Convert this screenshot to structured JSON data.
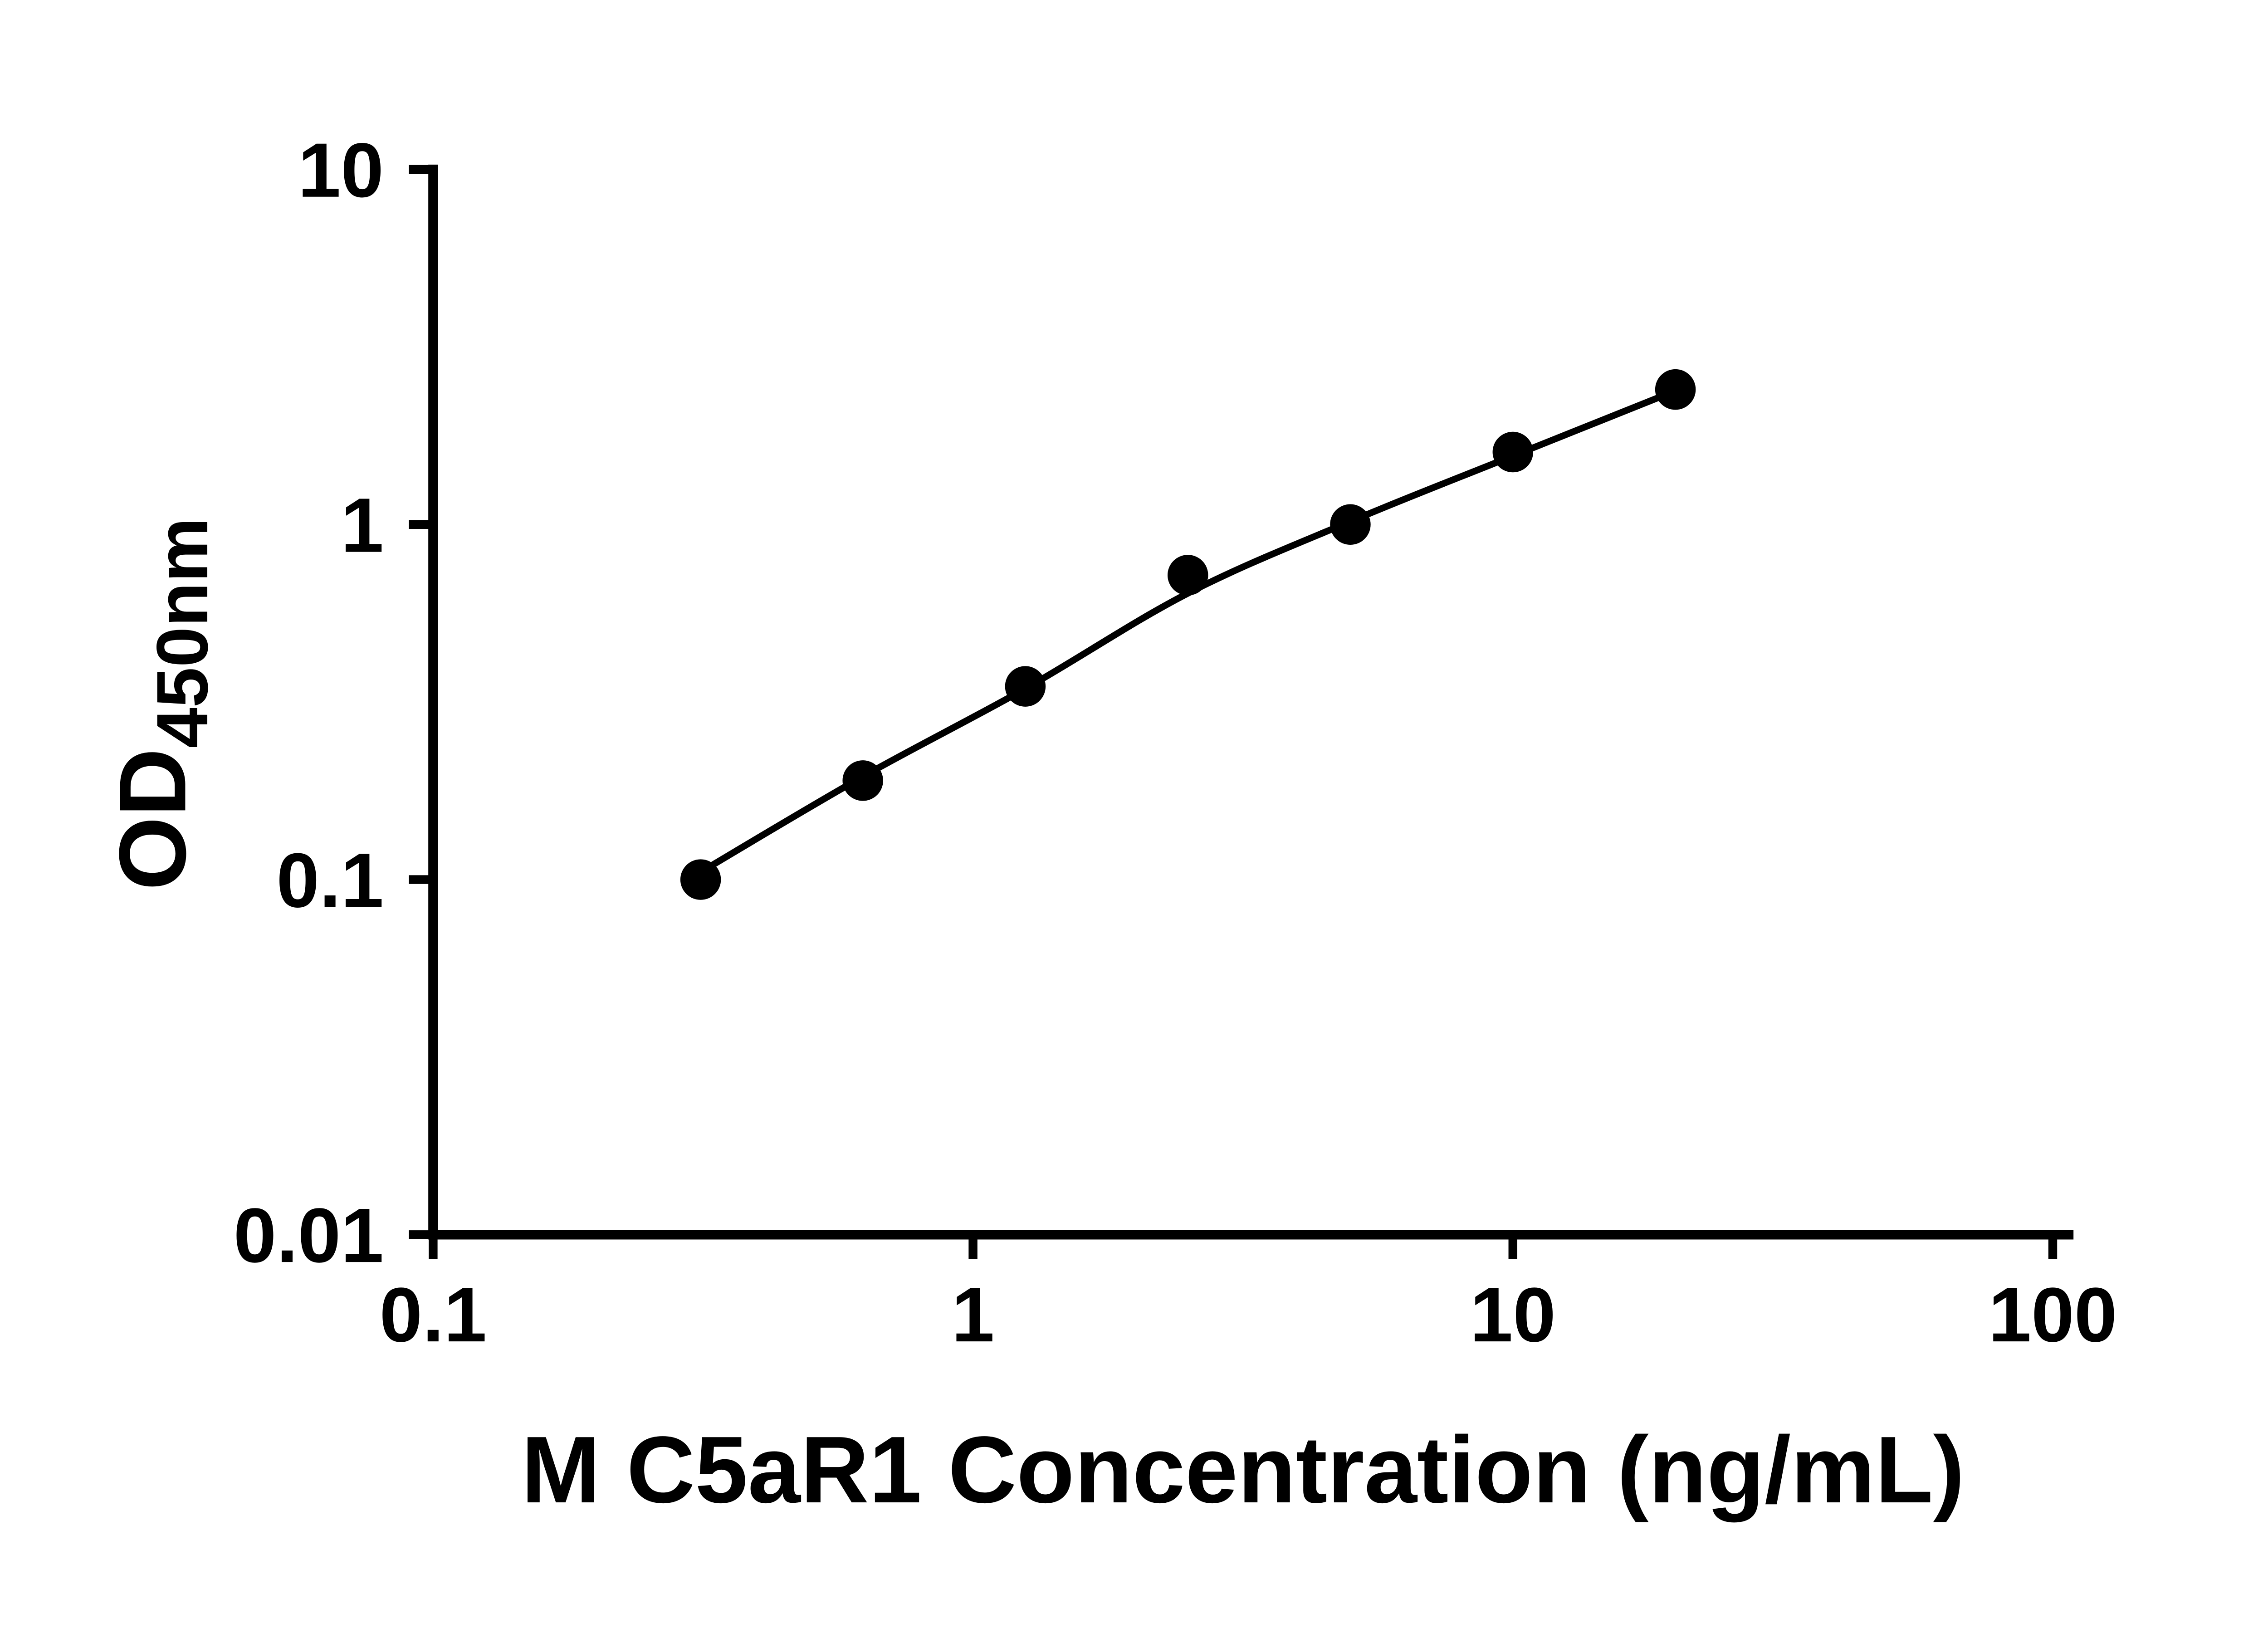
{
  "page": {
    "background": "#ffffff",
    "ink_color": "#000000"
  },
  "chart_data": {
    "type": "scatter",
    "title": "",
    "xlabel": "M C5aR1 Concentration (ng/mL)",
    "ylabel": "OD450nm",
    "ylabel_main": "OD",
    "ylabel_sub": "450nm",
    "x_scale": "log10",
    "y_scale": "log10",
    "xlim": [
      0.1,
      100
    ],
    "ylim": [
      0.01,
      10
    ],
    "x_ticks": [
      0.1,
      1,
      10,
      100
    ],
    "x_tick_labels": [
      "0.1",
      "1",
      "10",
      "100"
    ],
    "y_ticks": [
      0.01,
      0.1,
      1,
      10
    ],
    "y_tick_labels": [
      "0.01",
      "0.1",
      "1",
      "10"
    ],
    "grid": false,
    "legend": "none",
    "marker": {
      "shape": "circle",
      "color": "#000000"
    },
    "series": [
      {
        "name": "standard-curve-points",
        "x": [
          0.313,
          0.625,
          1.25,
          2.5,
          5,
          10,
          20
        ],
        "y": [
          0.1,
          0.19,
          0.35,
          0.72,
          1.0,
          1.6,
          2.4
        ]
      }
    ],
    "fit_curve": {
      "name": "fitted-curve",
      "x": [
        0.313,
        0.625,
        1.25,
        2.5,
        5,
        10,
        20
      ],
      "y": [
        0.105,
        0.195,
        0.345,
        0.64,
        1.02,
        1.56,
        2.38
      ]
    }
  }
}
